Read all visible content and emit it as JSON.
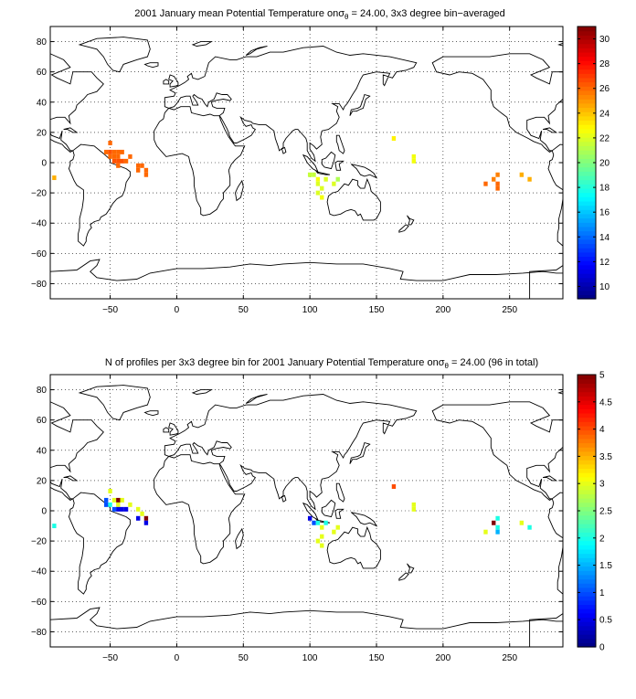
{
  "chart_data": [
    {
      "type": "heatmap",
      "title": "2001 January mean Potential Temperature on",
      "title_sigma": "σ",
      "title_sub": "θ",
      "title_rest": " = 24.00, 3x3 degree bin−averaged",
      "xlim": [
        -95,
        290
      ],
      "ylim": [
        -90,
        90
      ],
      "x_ticks": [
        -50,
        0,
        50,
        100,
        150,
        200,
        250
      ],
      "y_ticks": [
        -80,
        -60,
        -40,
        -20,
        0,
        20,
        40,
        60,
        80
      ],
      "x_tick_labels": [
        "−50",
        "0",
        "50",
        "100",
        "150",
        "200",
        "250"
      ],
      "y_tick_labels": [
        "−80",
        "−60",
        "−40",
        "−20",
        "0",
        "20",
        "40",
        "60",
        "80"
      ],
      "grid": true,
      "colorbar": {
        "range": [
          9,
          31
        ],
        "ticks": [
          10,
          12,
          14,
          16,
          18,
          20,
          22,
          24,
          26,
          28,
          30
        ],
        "tick_labels": [
          "10",
          "12",
          "14",
          "16",
          "18",
          "20",
          "22",
          "24",
          "26",
          "28",
          "30"
        ],
        "colormap": "jet"
      },
      "cells": [
        {
          "lon": -92,
          "lat": -10,
          "value": 24.5
        },
        {
          "lon": -50,
          "lat": 13,
          "value": 26
        },
        {
          "lon": -53,
          "lat": 7,
          "value": 26
        },
        {
          "lon": -50,
          "lat": 7,
          "value": 26.5
        },
        {
          "lon": -47,
          "lat": 7,
          "value": 26
        },
        {
          "lon": -44,
          "lat": 7,
          "value": 26
        },
        {
          "lon": -41,
          "lat": 7,
          "value": 26
        },
        {
          "lon": -35,
          "lat": 4,
          "value": 26
        },
        {
          "lon": -50,
          "lat": 4,
          "value": 26
        },
        {
          "lon": -47,
          "lat": 4,
          "value": 26
        },
        {
          "lon": -44,
          "lat": 4,
          "value": 26
        },
        {
          "lon": -47,
          "lat": 1,
          "value": 26.5
        },
        {
          "lon": -44,
          "lat": 1,
          "value": 26.5
        },
        {
          "lon": -41,
          "lat": 1,
          "value": 26.5
        },
        {
          "lon": -38,
          "lat": 1,
          "value": 26
        },
        {
          "lon": -44,
          "lat": -2,
          "value": 26
        },
        {
          "lon": -29,
          "lat": -2,
          "value": 26
        },
        {
          "lon": -26,
          "lat": -2,
          "value": 26
        },
        {
          "lon": -29,
          "lat": -5,
          "value": 26
        },
        {
          "lon": -23,
          "lat": -5,
          "value": 26
        },
        {
          "lon": -23,
          "lat": -8,
          "value": 26
        },
        {
          "lon": 100,
          "lat": -8,
          "value": 21.5
        },
        {
          "lon": 103,
          "lat": -8,
          "value": 21.5
        },
        {
          "lon": 106,
          "lat": -11,
          "value": 22.5
        },
        {
          "lon": 112,
          "lat": -11,
          "value": 22
        },
        {
          "lon": 121,
          "lat": -11,
          "value": 21
        },
        {
          "lon": 106,
          "lat": -14,
          "value": 22
        },
        {
          "lon": 118,
          "lat": -14,
          "value": 22
        },
        {
          "lon": 109,
          "lat": -17,
          "value": 22
        },
        {
          "lon": 106,
          "lat": -20,
          "value": 22
        },
        {
          "lon": 109,
          "lat": -23,
          "value": 22.5
        },
        {
          "lon": 163,
          "lat": 16,
          "value": 23
        },
        {
          "lon": 178,
          "lat": 4,
          "value": 22.5
        },
        {
          "lon": 178,
          "lat": 1,
          "value": 22.5
        },
        {
          "lon": 241,
          "lat": -8,
          "value": 25.5
        },
        {
          "lon": 238,
          "lat": -11,
          "value": 25.5
        },
        {
          "lon": 232,
          "lat": -14,
          "value": 26
        },
        {
          "lon": 241,
          "lat": -14,
          "value": 26
        },
        {
          "lon": 241,
          "lat": -17,
          "value": 26
        },
        {
          "lon": 259,
          "lat": -8,
          "value": 24.5
        },
        {
          "lon": 265,
          "lat": -11,
          "value": 24.5
        }
      ]
    },
    {
      "type": "heatmap",
      "title": "N of profiles per 3x3 degree bin for 2001 January Potential Temperature on",
      "title_sigma": "σ",
      "title_sub": "θ",
      "title_rest": " = 24.00 (96 in total)",
      "xlim": [
        -95,
        290
      ],
      "ylim": [
        -90,
        90
      ],
      "x_ticks": [
        -50,
        0,
        50,
        100,
        150,
        200,
        250
      ],
      "y_ticks": [
        -80,
        -60,
        -40,
        -20,
        0,
        20,
        40,
        60,
        80
      ],
      "x_tick_labels": [
        "−50",
        "0",
        "50",
        "100",
        "150",
        "200",
        "250"
      ],
      "y_tick_labels": [
        "−80",
        "−60",
        "−40",
        "−20",
        "0",
        "20",
        "40",
        "60",
        "80"
      ],
      "grid": true,
      "colorbar": {
        "range": [
          0,
          5
        ],
        "ticks": [
          0,
          0.5,
          1,
          1.5,
          2,
          2.5,
          3,
          3.5,
          4,
          4.5,
          5
        ],
        "tick_labels": [
          "0",
          "0.5",
          "1",
          "1.5",
          "2",
          "2.5",
          "3",
          "3.5",
          "4",
          "4.5",
          "5"
        ],
        "colormap": "jet"
      },
      "cells": [
        {
          "lon": -92,
          "lat": -10,
          "value": 2
        },
        {
          "lon": -50,
          "lat": 13,
          "value": 3
        },
        {
          "lon": -53,
          "lat": 7,
          "value": 1
        },
        {
          "lon": -47,
          "lat": 7,
          "value": 3
        },
        {
          "lon": -44,
          "lat": 7,
          "value": 5
        },
        {
          "lon": -41,
          "lat": 7,
          "value": 3
        },
        {
          "lon": -35,
          "lat": 4,
          "value": 3
        },
        {
          "lon": -53,
          "lat": 4,
          "value": 1
        },
        {
          "lon": -50,
          "lat": 4,
          "value": 2
        },
        {
          "lon": -44,
          "lat": 4,
          "value": 3
        },
        {
          "lon": -47,
          "lat": 1,
          "value": 1
        },
        {
          "lon": -44,
          "lat": 1,
          "value": 0.5
        },
        {
          "lon": -41,
          "lat": 1,
          "value": 0.5
        },
        {
          "lon": -38,
          "lat": 1,
          "value": 0.5
        },
        {
          "lon": -29,
          "lat": 1,
          "value": 3
        },
        {
          "lon": -26,
          "lat": -2,
          "value": 3
        },
        {
          "lon": -29,
          "lat": -5,
          "value": 0.5
        },
        {
          "lon": -23,
          "lat": -5,
          "value": 5
        },
        {
          "lon": -23,
          "lat": -8,
          "value": 0.5
        },
        {
          "lon": 100,
          "lat": -5,
          "value": 0.5
        },
        {
          "lon": 103,
          "lat": -8,
          "value": 1
        },
        {
          "lon": 106,
          "lat": -8,
          "value": 2
        },
        {
          "lon": 112,
          "lat": -8,
          "value": 2
        },
        {
          "lon": 109,
          "lat": -11,
          "value": 3
        },
        {
          "lon": 121,
          "lat": -11,
          "value": 3
        },
        {
          "lon": 118,
          "lat": -14,
          "value": 3
        },
        {
          "lon": 109,
          "lat": -17,
          "value": 3
        },
        {
          "lon": 106,
          "lat": -20,
          "value": 3
        },
        {
          "lon": 109,
          "lat": -23,
          "value": 3
        },
        {
          "lon": 163,
          "lat": 16,
          "value": 4
        },
        {
          "lon": 178,
          "lat": 4,
          "value": 3
        },
        {
          "lon": 178,
          "lat": 1,
          "value": 3
        },
        {
          "lon": 238,
          "lat": -8,
          "value": 5
        },
        {
          "lon": 241,
          "lat": -5,
          "value": 2
        },
        {
          "lon": 232,
          "lat": -14,
          "value": 3
        },
        {
          "lon": 241,
          "lat": -11,
          "value": 2
        },
        {
          "lon": 241,
          "lat": -14,
          "value": 1.5
        },
        {
          "lon": 259,
          "lat": -8,
          "value": 3
        },
        {
          "lon": 265,
          "lat": -11,
          "value": 2
        }
      ]
    }
  ]
}
